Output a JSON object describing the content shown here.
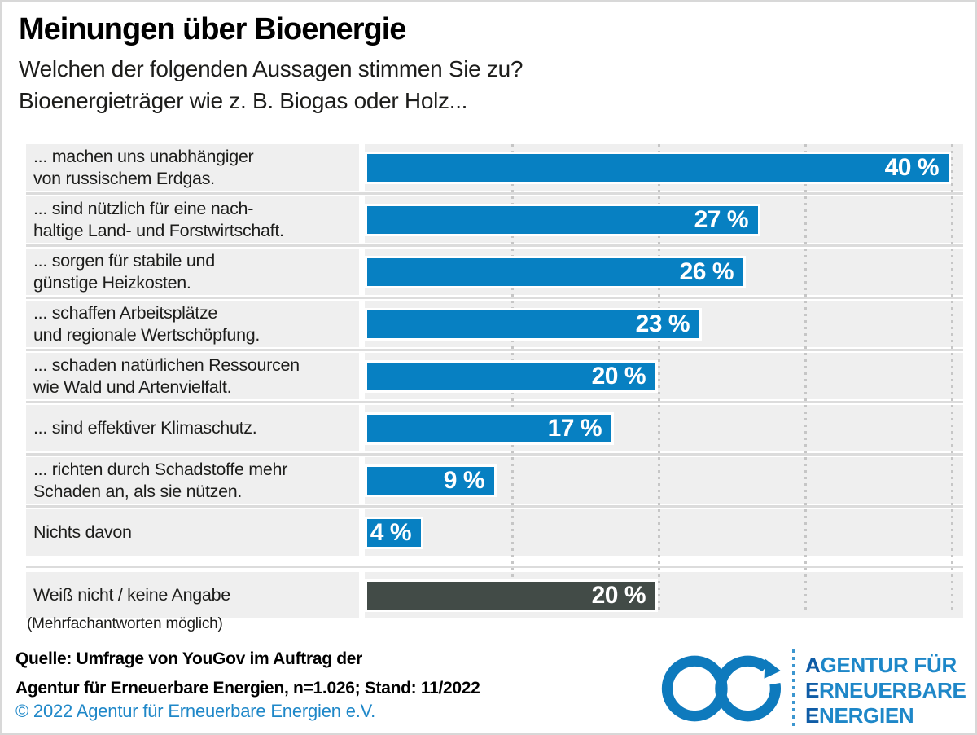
{
  "page": {
    "title": "Meinungen über Bioenergie",
    "subtitle_line1": "Welchen der folgenden Aussagen stimmen Sie zu?",
    "subtitle_line2": "Bioenergieträger wie z. B. Biogas oder Holz...",
    "footnote": "(Mehrfachantworten möglich)",
    "source_line1": "Quelle: Umfrage von YouGov im Auftrag der",
    "source_line2": "Agentur für Erneuerbare Energien, n=1.026; Stand: 11/2022",
    "copyright": "© 2022 Agentur für Erneuerbare Energien e.V."
  },
  "chart_data": {
    "type": "bar",
    "orientation": "horizontal",
    "title": "Meinungen über Bioenergie",
    "subtitle": "Welchen der folgenden Aussagen stimmen Sie zu? Bioenergieträger wie z. B. Biogas oder Holz...",
    "unit": "%",
    "xlim": [
      0,
      41
    ],
    "gridlines_percent": [
      10,
      20,
      30,
      40
    ],
    "grid": "dotted-vertical",
    "categories": [
      "... machen uns unabhängiger von russischem Erdgas.",
      "... sind nützlich für eine nachhaltige Land- und Forstwirtschaft.",
      "... sorgen für stabile und günstige Heizkosten.",
      "... schaffen Arbeitsplätze und regionale Wertschöpfung.",
      "... schaden natürlichen Ressourcen wie Wald und Artenvielfalt.",
      "... sind effektiver Klimaschutz.",
      "... richten durch Schadstoffe mehr Schaden an, als sie nützen.",
      "Nichts davon",
      "Weiß nicht / keine Angabe"
    ],
    "values": [
      40,
      27,
      26,
      23,
      20,
      17,
      9,
      4,
      20
    ],
    "rows": [
      {
        "label_lines": [
          "... machen uns unabhängiger",
          "von russischem Erdgas."
        ],
        "value": 40,
        "value_label": "40 %",
        "color": "blue",
        "big_gap_before": false
      },
      {
        "label_lines": [
          "... sind nützlich für eine nach-",
          "haltige Land- und Forstwirtschaft."
        ],
        "value": 27,
        "value_label": "27 %",
        "color": "blue",
        "big_gap_before": false
      },
      {
        "label_lines": [
          "... sorgen für stabile und",
          "günstige Heizkosten."
        ],
        "value": 26,
        "value_label": "26 %",
        "color": "blue",
        "big_gap_before": false
      },
      {
        "label_lines": [
          "... schaffen Arbeitsplätze",
          "und regionale Wertschöpfung."
        ],
        "value": 23,
        "value_label": "23 %",
        "color": "blue",
        "big_gap_before": false
      },
      {
        "label_lines": [
          "... schaden natürlichen Ressourcen",
          "wie Wald und Artenvielfalt."
        ],
        "value": 20,
        "value_label": "20 %",
        "color": "blue",
        "big_gap_before": false
      },
      {
        "label_lines": [
          "... sind effektiver Klimaschutz."
        ],
        "value": 17,
        "value_label": "17 %",
        "color": "blue",
        "big_gap_before": false
      },
      {
        "label_lines": [
          "... richten durch Schadstoffe mehr",
          "Schaden an, als sie nützen."
        ],
        "value": 9,
        "value_label": "9 %",
        "color": "blue",
        "big_gap_before": false
      },
      {
        "label_lines": [
          "Nichts davon"
        ],
        "value": 4,
        "value_label": "4 %",
        "color": "blue",
        "big_gap_before": false
      },
      {
        "label_lines": [
          "Weiß nicht / keine Angabe"
        ],
        "value": 20,
        "value_label": "20 %",
        "color": "dark",
        "big_gap_before": true
      }
    ]
  },
  "logo": {
    "symbol": "infinity-arrow-icon",
    "lines": [
      {
        "lead": "A",
        "rest": "GENTUR FÜR"
      },
      {
        "lead": "E",
        "rest": "RNEUERBARE"
      },
      {
        "lead": "E",
        "rest": "NERGIEN"
      }
    ]
  },
  "colors": {
    "bar_blue": "#0780c2",
    "bar_dark": "#424b47",
    "row_background": "#efefef",
    "separator": "#dcdcdc",
    "gridline": "#c6c6c6",
    "frame_border": "#d8d8d8",
    "copyright_blue": "#1e87c8",
    "logo_blue": "#0e7abd",
    "logo_dark_blue": "#0f5ca6",
    "value_text": "#ffffff",
    "text": "#1d1d1b"
  }
}
